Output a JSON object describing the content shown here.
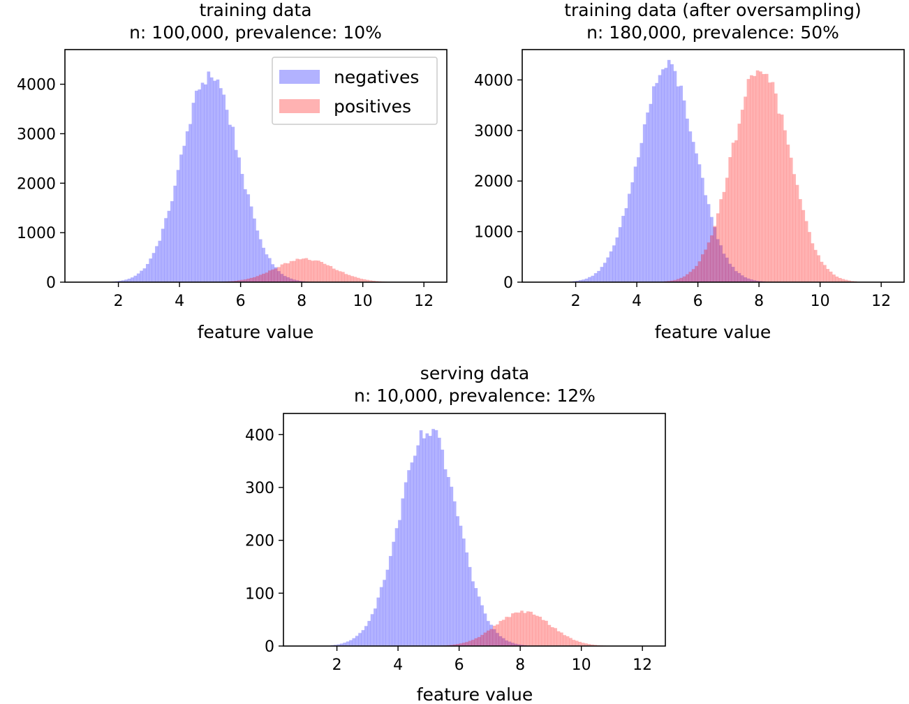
{
  "chart_data": [
    {
      "type": "bar",
      "title_line1": "training data",
      "title_line2": "n: 100,000, prevalence: 10%",
      "xlabel": "feature value",
      "ylabel": "",
      "xlim": [
        0.25,
        12.75
      ],
      "ylim": [
        0,
        4700
      ],
      "xticks": [
        2,
        4,
        6,
        8,
        10,
        12
      ],
      "xtick_labels": [
        "2",
        "4",
        "6",
        "8",
        "10",
        "12"
      ],
      "yticks": [
        0,
        1000,
        2000,
        3000,
        4000
      ],
      "ytick_labels": [
        "0",
        "1000",
        "2000",
        "3000",
        "4000"
      ],
      "bin_width": 0.1,
      "legend": {
        "position": "upper right",
        "entries": [
          {
            "label": "negatives",
            "color": "#0000ff"
          },
          {
            "label": "positives",
            "color": "#ff0000"
          }
        ]
      },
      "series": [
        {
          "name": "negatives",
          "color": "#0000ff",
          "opacity": 0.3,
          "mean": 5.0,
          "sd": 0.93,
          "peak": 4200
        },
        {
          "name": "positives",
          "color": "#ff0000",
          "opacity": 0.3,
          "mean": 8.1,
          "sd": 0.95,
          "peak": 470
        }
      ]
    },
    {
      "type": "bar",
      "title_line1": "training data (after oversampling)",
      "title_line2": "n: 180,000, prevalence: 50%",
      "xlabel": "feature value",
      "ylabel": "",
      "xlim": [
        0.25,
        12.75
      ],
      "ylim": [
        0,
        4600
      ],
      "xticks": [
        2,
        4,
        6,
        8,
        10,
        12
      ],
      "xtick_labels": [
        "2",
        "4",
        "6",
        "8",
        "10",
        "12"
      ],
      "yticks": [
        0,
        1000,
        2000,
        3000,
        4000
      ],
      "ytick_labels": [
        "0",
        "1000",
        "2000",
        "3000",
        "4000"
      ],
      "bin_width": 0.1,
      "series": [
        {
          "name": "negatives",
          "color": "#0000ff",
          "opacity": 0.3,
          "mean": 5.0,
          "sd": 0.93,
          "peak": 4250
        },
        {
          "name": "positives",
          "color": "#ff0000",
          "opacity": 0.3,
          "mean": 8.05,
          "sd": 0.93,
          "peak": 4250
        }
      ]
    },
    {
      "type": "bar",
      "title_line1": "serving data",
      "title_line2": "n: 10,000, prevalence: 12%",
      "xlabel": "feature value",
      "ylabel": "",
      "xlim": [
        0.25,
        12.75
      ],
      "ylim": [
        0,
        440
      ],
      "xticks": [
        2,
        4,
        6,
        8,
        10,
        12
      ],
      "xtick_labels": [
        "2",
        "4",
        "6",
        "8",
        "10",
        "12"
      ],
      "yticks": [
        0,
        100,
        200,
        300,
        400
      ],
      "ytick_labels": [
        "0",
        "100",
        "200",
        "300",
        "400"
      ],
      "bin_width": 0.1,
      "series": [
        {
          "name": "negatives",
          "color": "#0000ff",
          "opacity": 0.3,
          "mean": 5.0,
          "sd": 0.95,
          "peak": 405
        },
        {
          "name": "positives",
          "color": "#ff0000",
          "opacity": 0.3,
          "mean": 8.1,
          "sd": 0.9,
          "peak": 65
        }
      ]
    }
  ]
}
